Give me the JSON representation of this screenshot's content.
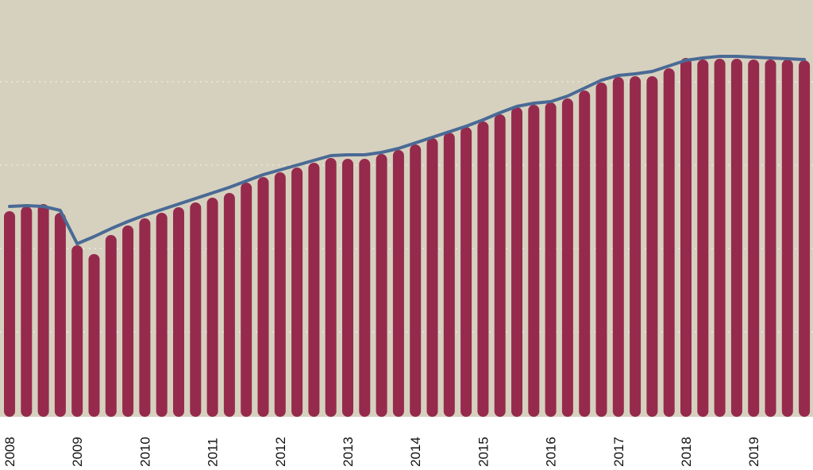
{
  "chart_data": {
    "type": "bar",
    "title": "",
    "xlabel": "",
    "ylabel": "",
    "x_tick_labels": [
      "2008",
      "2009",
      "2010",
      "2011",
      "2012",
      "2013",
      "2014",
      "2015",
      "2016",
      "2017",
      "2018",
      "2019"
    ],
    "periods_per_year": 4,
    "ylim": [
      0,
      523
    ],
    "grid": true,
    "grid_values": [
      105,
      210,
      315,
      420
    ],
    "series": [
      {
        "type": "bar",
        "values": [
          257,
          263,
          266,
          255,
          214,
          203,
          227,
          239,
          248,
          255,
          262,
          268,
          274,
          280,
          293,
          300,
          306,
          312,
          318,
          324,
          323,
          323,
          329,
          334,
          341,
          349,
          356,
          363,
          370,
          379,
          388,
          391,
          394,
          399,
          409,
          419,
          426,
          427,
          427,
          437,
          450,
          448,
          449,
          449,
          448,
          448,
          448,
          447
        ]
      },
      {
        "type": "line",
        "values": [
          263,
          264,
          263,
          258,
          216,
          225,
          235,
          244,
          252,
          259,
          266,
          273,
          280,
          287,
          295,
          303,
          309,
          315,
          321,
          327,
          328,
          328,
          331,
          336,
          343,
          350,
          357,
          364,
          372,
          381,
          389,
          393,
          395,
          402,
          412,
          422,
          428,
          430,
          433,
          440,
          447,
          450,
          452,
          452,
          451,
          450,
          449,
          448
        ]
      }
    ],
    "colors": {
      "background": "#d6d1bf",
      "bar": "#962a4d",
      "line": "#4a6a95",
      "grid": "#ece8dc"
    }
  }
}
